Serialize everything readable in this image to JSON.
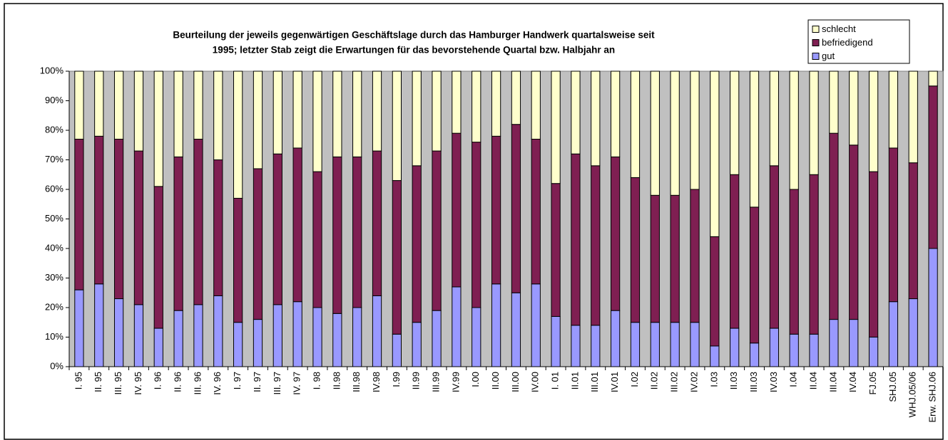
{
  "chart_data": {
    "type": "stacked_bar",
    "title": [
      "Beurteilung der jeweils gegenwärtigen Geschäftslage durch das Hamburger Handwerk quartalsweise seit",
      "1995; letzter Stab zeigt die Erwartungen für das bevorstehende Quartal bzw. Halbjahr an"
    ],
    "categories": [
      "I. 95",
      "II. 95",
      "III. 95",
      "IV. 95",
      "I. 96",
      "II. 96",
      "III. 96",
      "IV. 96",
      "I. 97",
      "II. 97",
      "III. 97",
      "IV. 97",
      "I. 98",
      "II.98",
      "III.98",
      "IV.98",
      "I.99",
      "II.99",
      "III.99",
      "IV.99",
      "I.00",
      "II.00",
      "III.00",
      "IV.00",
      "I. 01",
      "II.01",
      "III.01",
      "IV.01",
      "I.02",
      "II.02",
      "III.02",
      "IV.02",
      "I.03",
      "II.03",
      "III.03",
      "IV.03",
      "I.04",
      "II.04",
      "III.04",
      "IV.04",
      "FJ.05",
      "SHJ.05",
      "WHJ.05/06",
      "Erw. SHJ.06"
    ],
    "series": [
      {
        "name": "gut",
        "color": "#9999ff",
        "values": [
          26,
          28,
          23,
          21,
          13,
          19,
          21,
          24,
          15,
          16,
          21,
          22,
          20,
          18,
          20,
          24,
          11,
          15,
          19,
          27,
          20,
          28,
          25,
          28,
          17,
          14,
          14,
          19,
          15,
          15,
          15,
          15,
          7,
          13,
          8,
          13,
          11,
          11,
          16,
          16,
          10,
          22,
          23,
          40
        ]
      },
      {
        "name": "befriedigend",
        "color": "#7f1f52",
        "values": [
          51,
          50,
          54,
          52,
          48,
          52,
          56,
          46,
          42,
          51,
          51,
          52,
          46,
          53,
          51,
          49,
          52,
          53,
          54,
          52,
          56,
          50,
          57,
          49,
          45,
          58,
          54,
          52,
          49,
          43,
          43,
          45,
          37,
          52,
          46,
          55,
          49,
          54,
          63,
          59,
          56,
          52,
          46,
          55
        ]
      },
      {
        "name": "schlecht",
        "color": "#ffffcc",
        "values": [
          23,
          22,
          23,
          27,
          39,
          29,
          23,
          30,
          43,
          33,
          28,
          26,
          34,
          29,
          29,
          27,
          37,
          32,
          27,
          21,
          24,
          22,
          18,
          23,
          38,
          28,
          32,
          29,
          36,
          42,
          42,
          40,
          56,
          35,
          46,
          32,
          40,
          35,
          21,
          25,
          34,
          26,
          31,
          5
        ]
      }
    ],
    "ylim": [
      0,
      100
    ],
    "yticks": [
      {
        "value": 0,
        "label": "0%"
      },
      {
        "value": 10,
        "label": "10%"
      },
      {
        "value": 20,
        "label": "20%"
      },
      {
        "value": 30,
        "label": "30%"
      },
      {
        "value": 40,
        "label": "40%"
      },
      {
        "value": 50,
        "label": "50%"
      },
      {
        "value": 60,
        "label": "60%"
      },
      {
        "value": 70,
        "label": "70%"
      },
      {
        "value": 80,
        "label": "80%"
      },
      {
        "value": 90,
        "label": "90%"
      },
      {
        "value": 100,
        "label": "100%"
      }
    ],
    "plot_background": "#c0c0c0",
    "legend": "top-right"
  }
}
